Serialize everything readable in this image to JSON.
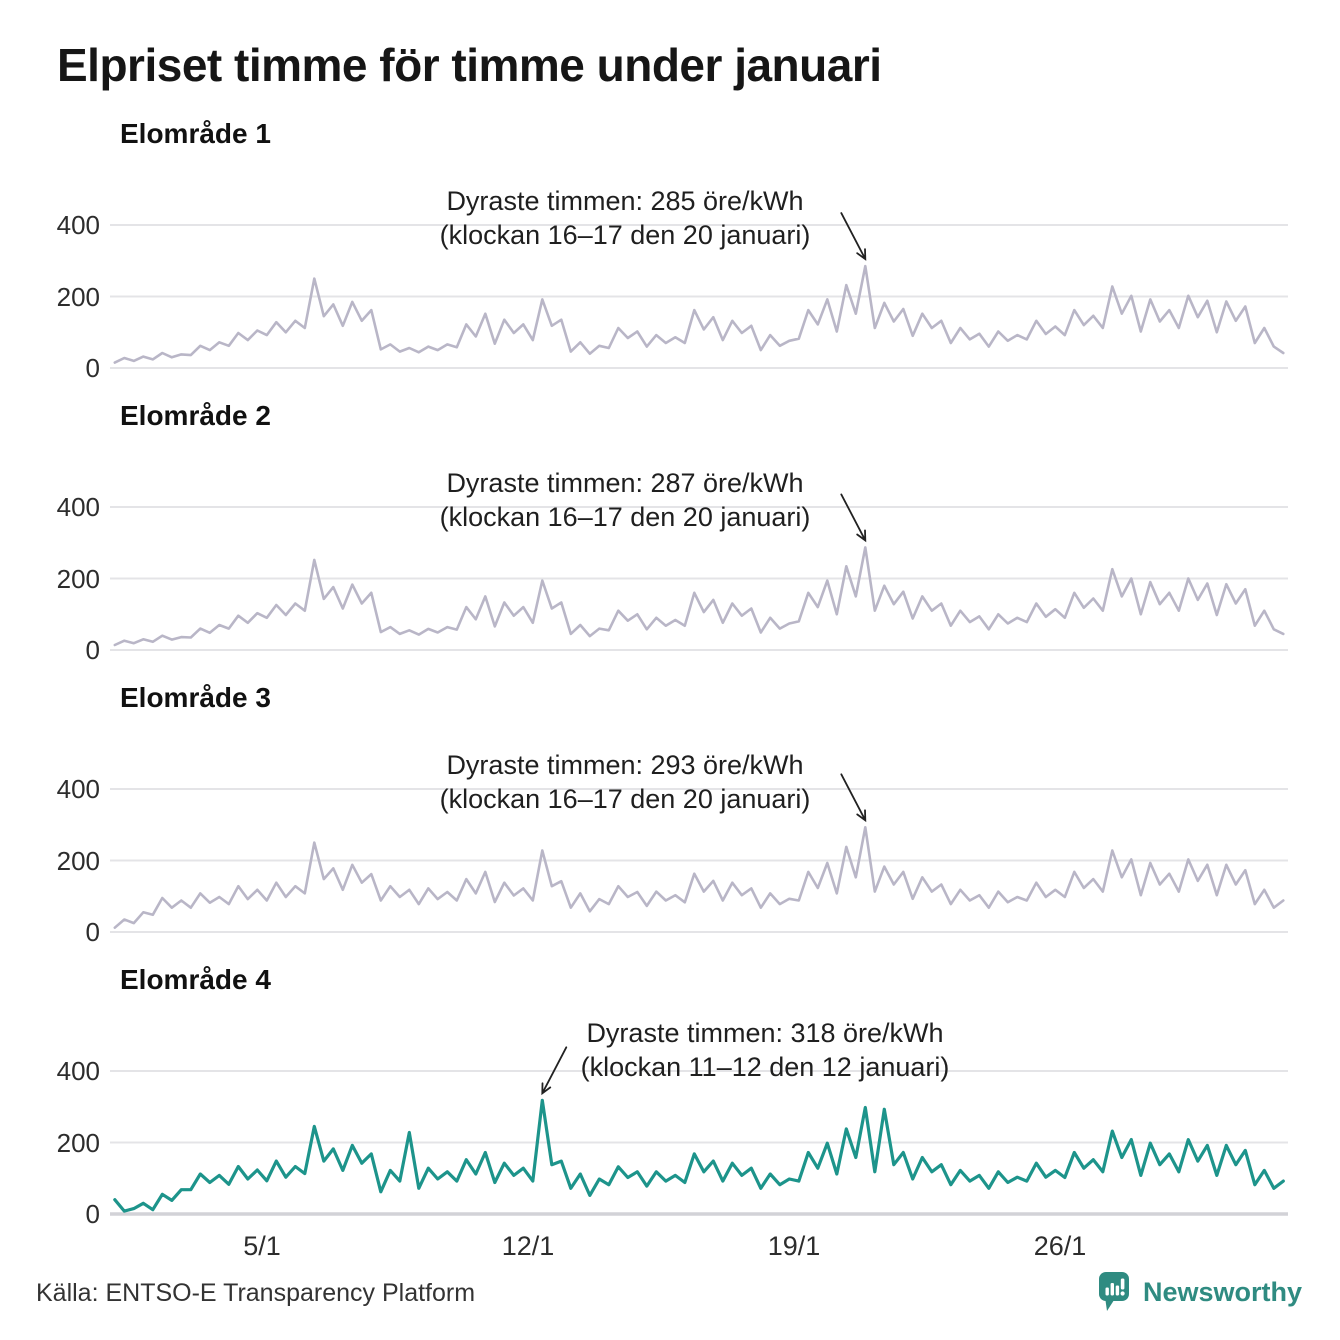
{
  "page": {
    "title": "Elpriset timme för timme under januari",
    "footer_source": "Källa: ENTSO-E Transparency Platform",
    "brand": "Newsworthy"
  },
  "colors": {
    "line_gray": "#b9b6c7",
    "line_teal": "#1d948b",
    "grid": "#e4e4e7",
    "axis_zero": "#d2d2d7",
    "arrow": "#222222",
    "brand_teal": "#2f8b81"
  },
  "chart_data": {
    "type": "line",
    "title": "Elpriset timme för timme under januari",
    "unit": "öre/kWh",
    "month": "januari",
    "days_in_month": 31,
    "samples_per_day": 4,
    "sample_hours": [
      3,
      9,
      13,
      19
    ],
    "y_ticks": [
      0,
      200,
      400
    ],
    "ylim": [
      0,
      460
    ],
    "x_tick_days": [
      5,
      12,
      19,
      26
    ],
    "x_tick_labels": [
      "5/1",
      "12/1",
      "19/1",
      "26/1"
    ],
    "grid": true,
    "panels": [
      {
        "label": "Elområde 1",
        "color": "#b9b6c7",
        "annotation": {
          "line1": "Dyraste timmen: 285 öre/kWh",
          "line2": "(klockan 16–17 den 20 januari)",
          "peak_value": 285,
          "peak_index": 79,
          "arrow_dir": "down-right"
        },
        "values": [
          15,
          28,
          20,
          32,
          24,
          42,
          30,
          38,
          36,
          62,
          50,
          72,
          62,
          98,
          78,
          105,
          92,
          128,
          100,
          132,
          112,
          250,
          145,
          178,
          118,
          185,
          132,
          162,
          52,
          66,
          46,
          56,
          44,
          60,
          50,
          66,
          58,
          122,
          88,
          152,
          68,
          135,
          98,
          122,
          78,
          192,
          118,
          135,
          46,
          72,
          40,
          62,
          56,
          112,
          84,
          102,
          60,
          92,
          70,
          86,
          70,
          162,
          108,
          142,
          78,
          132,
          98,
          118,
          50,
          92,
          62,
          76,
          82,
          162,
          122,
          192,
          102,
          232,
          152,
          285,
          112,
          182,
          130,
          165,
          90,
          152,
          112,
          132,
          70,
          112,
          80,
          96,
          60,
          102,
          76,
          92,
          80,
          132,
          95,
          116,
          92,
          162,
          120,
          146,
          112,
          228,
          152,
          202,
          102,
          192,
          130,
          162,
          112,
          202,
          142,
          188,
          100,
          186,
          132,
          172,
          70,
          112,
          60,
          42
        ]
      },
      {
        "label": "Elområde 2",
        "color": "#b9b6c7",
        "annotation": {
          "line1": "Dyraste timmen: 287 öre/kWh",
          "line2": "(klockan 16–17 den 20 januari)",
          "peak_value": 287,
          "peak_index": 79,
          "arrow_dir": "down-right"
        },
        "values": [
          14,
          26,
          19,
          30,
          23,
          40,
          29,
          36,
          35,
          60,
          48,
          70,
          60,
          96,
          76,
          103,
          90,
          126,
          98,
          130,
          110,
          252,
          143,
          176,
          116,
          183,
          130,
          160,
          50,
          64,
          45,
          55,
          43,
          59,
          49,
          64,
          57,
          120,
          86,
          150,
          66,
          133,
          96,
          120,
          76,
          194,
          116,
          133,
          45,
          70,
          39,
          60,
          55,
          110,
          82,
          100,
          58,
          90,
          68,
          84,
          68,
          160,
          106,
          140,
          76,
          130,
          96,
          116,
          49,
          90,
          60,
          74,
          80,
          160,
          120,
          194,
          100,
          234,
          150,
          287,
          110,
          180,
          128,
          163,
          88,
          150,
          110,
          130,
          68,
          110,
          78,
          94,
          58,
          100,
          74,
          90,
          78,
          130,
          93,
          114,
          90,
          160,
          118,
          144,
          110,
          226,
          150,
          200,
          100,
          190,
          128,
          160,
          110,
          200,
          140,
          186,
          98,
          184,
          130,
          170,
          68,
          110,
          58,
          45
        ]
      },
      {
        "label": "Elområde 3",
        "color": "#b9b6c7",
        "annotation": {
          "line1": "Dyraste timmen: 293 öre/kWh",
          "line2": "(klockan 16–17 den 20 januari)",
          "peak_value": 293,
          "peak_index": 79,
          "arrow_dir": "down-right"
        },
        "values": [
          12,
          35,
          25,
          55,
          48,
          95,
          68,
          88,
          68,
          108,
          82,
          98,
          78,
          128,
          92,
          118,
          88,
          138,
          98,
          128,
          108,
          250,
          148,
          178,
          118,
          188,
          138,
          162,
          88,
          128,
          98,
          118,
          78,
          122,
          92,
          112,
          88,
          148,
          108,
          168,
          84,
          138,
          102,
          122,
          88,
          228,
          128,
          142,
          68,
          108,
          58,
          92,
          78,
          128,
          98,
          112,
          73,
          113,
          88,
          103,
          83,
          163,
          113,
          143,
          88,
          138,
          103,
          122,
          68,
          108,
          78,
          93,
          88,
          168,
          123,
          193,
          108,
          238,
          153,
          293,
          113,
          183,
          133,
          168,
          93,
          153,
          113,
          133,
          78,
          118,
          88,
          103,
          68,
          113,
          83,
          98,
          88,
          138,
          98,
          118,
          98,
          168,
          123,
          148,
          113,
          228,
          153,
          203,
          103,
          193,
          133,
          163,
          113,
          203,
          143,
          188,
          103,
          188,
          133,
          173,
          78,
          118,
          68,
          88
        ]
      },
      {
        "label": "Elområde 4",
        "color": "#1d948b",
        "annotation": {
          "line1": "Dyraste timmen: 318 öre/kWh",
          "line2": "(klockan 11–12 den 12 januari)",
          "peak_value": 318,
          "peak_index": 45,
          "arrow_dir": "down-left"
        },
        "values": [
          40,
          8,
          15,
          30,
          12,
          55,
          38,
          68,
          68,
          112,
          88,
          108,
          83,
          133,
          98,
          123,
          93,
          148,
          103,
          133,
          113,
          245,
          148,
          182,
          122,
          192,
          142,
          168,
          62,
          122,
          92,
          228,
          72,
          128,
          98,
          118,
          92,
          152,
          112,
          172,
          88,
          142,
          108,
          128,
          92,
          318,
          138,
          148,
          72,
          112,
          52,
          98,
          82,
          132,
          102,
          118,
          78,
          118,
          92,
          108,
          88,
          168,
          118,
          148,
          92,
          142,
          108,
          128,
          72,
          112,
          82,
          98,
          92,
          172,
          128,
          198,
          112,
          238,
          158,
          298,
          118,
          293,
          138,
          172,
          98,
          158,
          118,
          138,
          82,
          122,
          92,
          108,
          72,
          118,
          88,
          103,
          92,
          142,
          103,
          122,
          102,
          172,
          128,
          152,
          118,
          232,
          158,
          208,
          108,
          198,
          138,
          168,
          118,
          208,
          148,
          192,
          108,
          192,
          138,
          178,
          82,
          122,
          72,
          92
        ]
      }
    ]
  }
}
